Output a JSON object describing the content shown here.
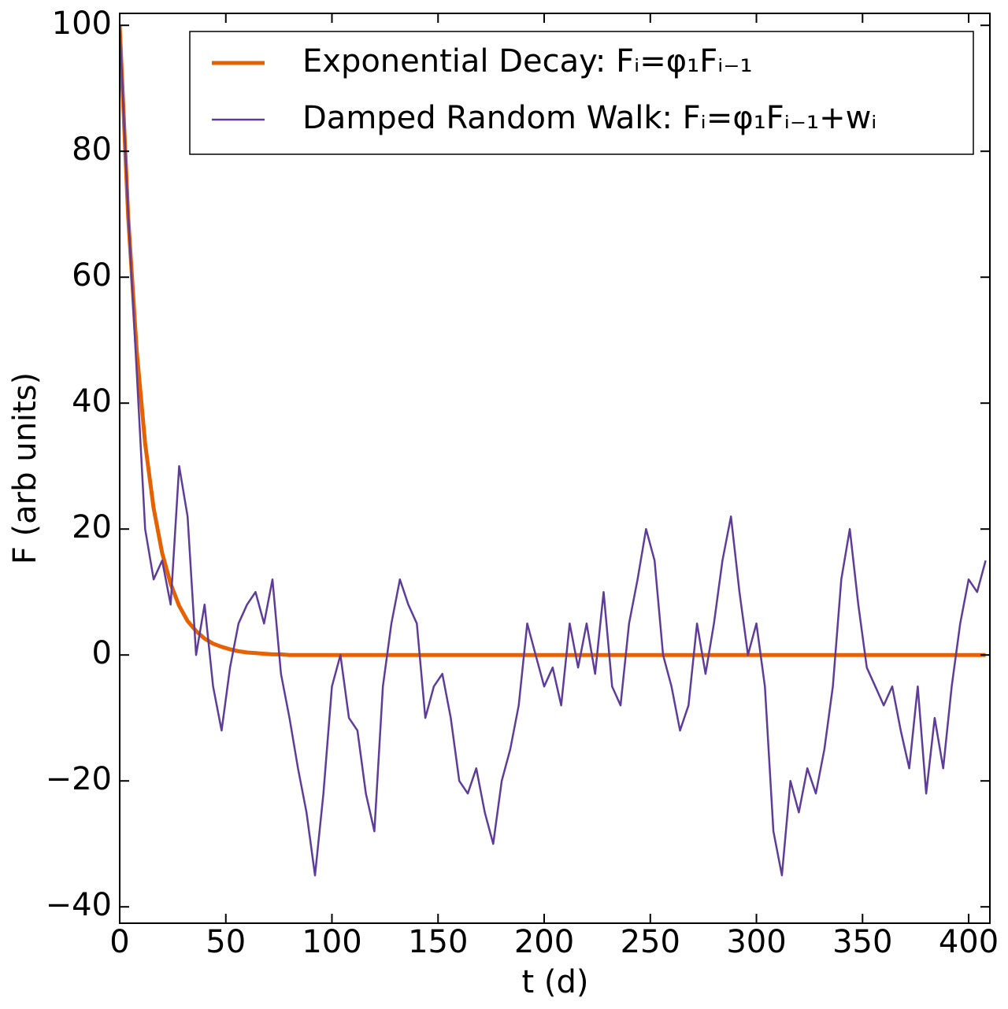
{
  "chart_data": {
    "type": "line",
    "xlabel": "t (d)",
    "ylabel": "F (arb units)",
    "x": [
      0,
      4,
      8,
      12,
      16,
      20,
      24,
      28,
      32,
      36,
      40,
      44,
      48,
      52,
      56,
      60,
      64,
      68,
      72,
      76,
      80,
      84,
      88,
      92,
      96,
      100,
      104,
      108,
      112,
      116,
      120,
      124,
      128,
      132,
      136,
      140,
      144,
      148,
      152,
      156,
      160,
      164,
      168,
      172,
      176,
      180,
      184,
      188,
      192,
      196,
      200,
      204,
      208,
      212,
      216,
      220,
      224,
      228,
      232,
      236,
      240,
      244,
      248,
      252,
      256,
      260,
      264,
      268,
      272,
      276,
      280,
      284,
      288,
      292,
      296,
      300,
      304,
      308,
      312,
      316,
      320,
      324,
      328,
      332,
      336,
      340,
      344,
      348,
      352,
      356,
      360,
      364,
      368,
      372,
      376,
      380,
      384,
      388,
      392,
      396,
      400,
      404,
      408
    ],
    "series": [
      {
        "name": "Exponential Decay: Fᵢ=φ₁Fᵢ₋₁",
        "color": "#e66101",
        "width": 5,
        "values": [
          100,
          69.5,
          48.3,
          33.6,
          23.3,
          16.2,
          11.3,
          7.8,
          5.4,
          3.8,
          2.6,
          1.8,
          1.3,
          0.9,
          0.6,
          0.4,
          0.3,
          0.2,
          0.1,
          0.1,
          0,
          0,
          0,
          0,
          0,
          0,
          0,
          0,
          0,
          0,
          0,
          0,
          0,
          0,
          0,
          0,
          0,
          0,
          0,
          0,
          0,
          0,
          0,
          0,
          0,
          0,
          0,
          0,
          0,
          0,
          0,
          0,
          0,
          0,
          0,
          0,
          0,
          0,
          0,
          0,
          0,
          0,
          0,
          0,
          0,
          0,
          0,
          0,
          0,
          0,
          0,
          0,
          0,
          0,
          0,
          0,
          0,
          0,
          0,
          0,
          0,
          0,
          0,
          0,
          0,
          0,
          0,
          0,
          0,
          0,
          0,
          0,
          0,
          0,
          0,
          0,
          0,
          0,
          0,
          0,
          0,
          0,
          0
        ]
      },
      {
        "name": "Damped Random Walk: Fᵢ=φ₁Fᵢ₋₁+wᵢ",
        "color": "#5e3c99",
        "width": 2.5,
        "values": [
          100,
          70,
          45,
          20,
          12,
          15,
          8,
          30,
          22,
          0,
          8,
          -5,
          -12,
          -2,
          5,
          8,
          10,
          5,
          12,
          -3,
          -10,
          -18,
          -25,
          -35,
          -22,
          -5,
          0,
          -10,
          -12,
          -22,
          -28,
          -5,
          5,
          12,
          8,
          5,
          -10,
          -5,
          -3,
          -10,
          -20,
          -22,
          -18,
          -25,
          -30,
          -20,
          -15,
          -8,
          5,
          0,
          -5,
          -2,
          -8,
          5,
          -2,
          5,
          -3,
          10,
          -5,
          -8,
          5,
          12,
          20,
          15,
          0,
          -5,
          -12,
          -8,
          5,
          -3,
          5,
          15,
          22,
          10,
          0,
          5,
          -5,
          -28,
          -35,
          -20,
          -25,
          -18,
          -22,
          -15,
          -5,
          12,
          20,
          8,
          -2,
          -5,
          -8,
          -5,
          -12,
          -18,
          -5,
          -22,
          -10,
          -18,
          -5,
          5,
          12,
          10,
          15
        ]
      }
    ],
    "xlim": [
      0,
      410
    ],
    "ylim": [
      -42.6,
      101.9
    ],
    "xticks": [
      0,
      50,
      100,
      150,
      200,
      250,
      300,
      350,
      400
    ],
    "yticks": [
      {
        "value": -40,
        "label": "−40"
      },
      {
        "value": -20,
        "label": "−20"
      },
      0,
      20,
      40,
      60,
      80,
      100
    ],
    "legend": "upper right",
    "grid": false
  }
}
